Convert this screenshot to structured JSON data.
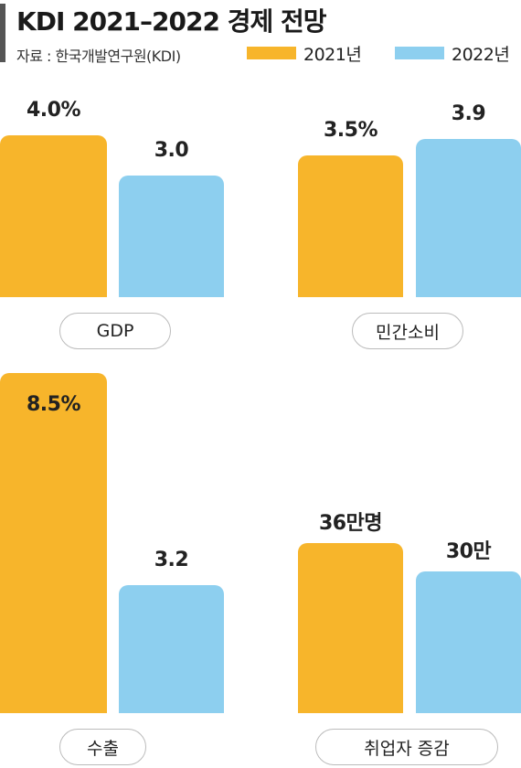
{
  "header": {
    "title": "KDI 2021–2022 경제 전망",
    "source": "자료 : 한국개발연구원(KDI)"
  },
  "colors": {
    "y2021": "#F7B52B",
    "y2022": "#8DCFEF"
  },
  "legend": [
    {
      "label": "2021년",
      "color": "#F7B52B"
    },
    {
      "label": "2022년",
      "color": "#8DCFEF"
    }
  ],
  "chart_data": [
    {
      "type": "bar",
      "category": "GDP",
      "series": [
        {
          "name": "2021년",
          "value": 4.0,
          "label": "4.0%"
        },
        {
          "name": "2022년",
          "value": 3.0,
          "label": "3.0"
        }
      ],
      "ylim": [
        0,
        4.5
      ]
    },
    {
      "type": "bar",
      "category": "민간소비",
      "series": [
        {
          "name": "2021년",
          "value": 3.5,
          "label": "3.5%"
        },
        {
          "name": "2022년",
          "value": 3.9,
          "label": "3.9"
        }
      ],
      "ylim": [
        0,
        4.5
      ]
    },
    {
      "type": "bar",
      "category": "수출",
      "series": [
        {
          "name": "2021년",
          "value": 8.5,
          "label": "8.5%"
        },
        {
          "name": "2022년",
          "value": 3.2,
          "label": "3.2"
        }
      ],
      "ylim": [
        0,
        8.5
      ]
    },
    {
      "type": "bar",
      "category": "취업자 증감",
      "series": [
        {
          "name": "2021년",
          "value": 36,
          "label": "36만명"
        },
        {
          "name": "2022년",
          "value": 30,
          "label": "30만"
        }
      ],
      "ylim": [
        0,
        80
      ]
    }
  ]
}
